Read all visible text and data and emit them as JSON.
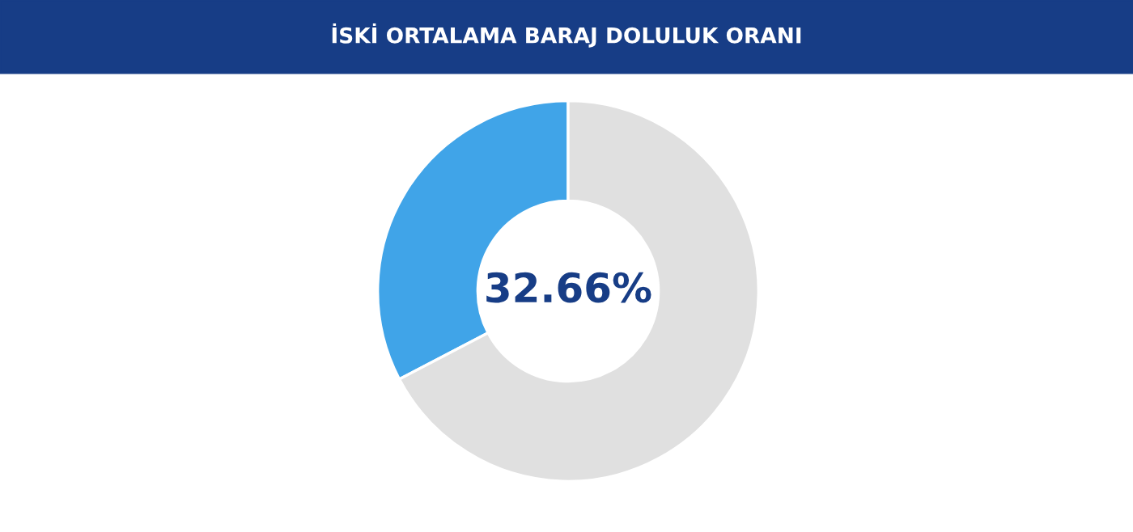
{
  "chart_data": {
    "type": "donut",
    "title": "İSKİ ORTALAMA BARAJ DOLULUK ORANI",
    "categories": [
      null,
      null
    ],
    "values": [
      32.66,
      67.34
    ],
    "colors": [
      "#40a4e8",
      "#e0e0e0"
    ],
    "annotations": [
      "32.66%"
    ]
  }
}
